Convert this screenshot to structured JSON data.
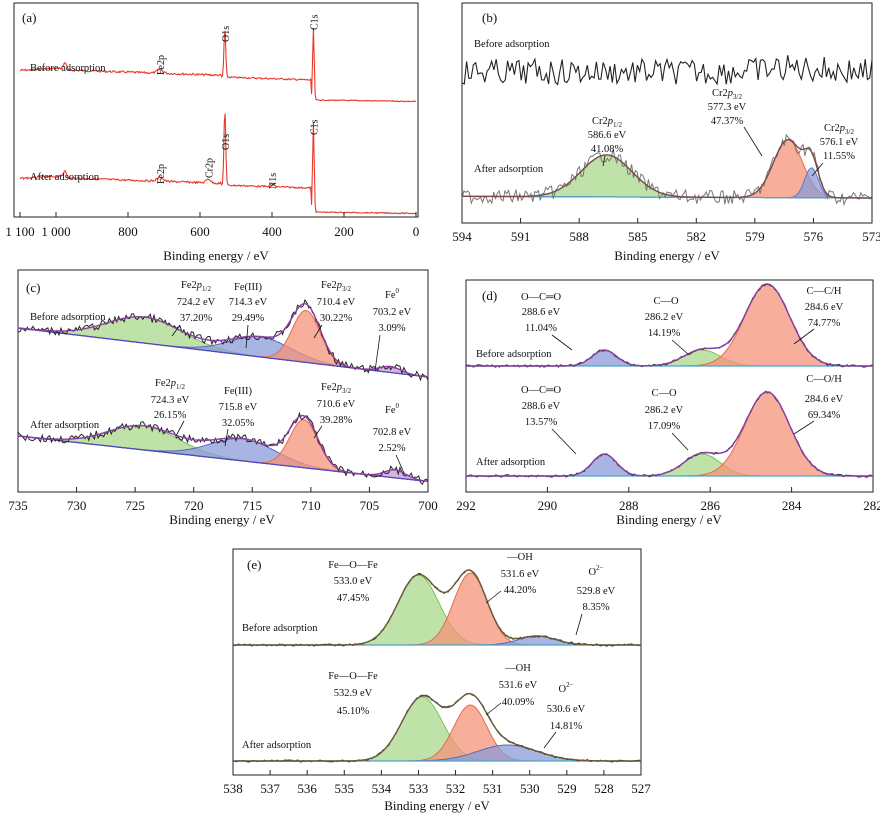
{
  "chart_data": [
    {
      "id": "a",
      "type": "line",
      "panel_label": "(a)",
      "xlabel": "Binding energy / eV",
      "xlim": [
        1100,
        0
      ],
      "xticks": [
        1100,
        1000,
        800,
        600,
        400,
        200,
        0
      ],
      "xtick_labels": [
        "1 100",
        "1 000",
        "800",
        "600",
        "400",
        "200",
        "0"
      ],
      "series_labels": [
        "Before adsorption",
        "After adsorption"
      ],
      "peak_labels": [
        {
          "series": 0,
          "x": 711,
          "text": "Fe2p"
        },
        {
          "series": 0,
          "x": 531,
          "text": "O1s"
        },
        {
          "series": 0,
          "x": 285,
          "text": "C1s"
        },
        {
          "series": 1,
          "x": 711,
          "text": "Fe2p"
        },
        {
          "series": 1,
          "x": 577,
          "text": "Cr2p"
        },
        {
          "series": 1,
          "x": 531,
          "text": "O1s"
        },
        {
          "series": 1,
          "x": 400,
          "text": "N1s"
        },
        {
          "series": 1,
          "x": 285,
          "text": "C1s"
        }
      ],
      "colors": {
        "data": "#e8392b",
        "peak": "#111111"
      }
    },
    {
      "id": "b",
      "type": "line",
      "panel_label": "(b)",
      "xlabel": "Binding energy / eV",
      "xlim": [
        594,
        573
      ],
      "xticks": [
        594,
        591,
        588,
        585,
        582,
        579,
        576,
        573
      ],
      "series_labels": [
        "Before adsorption",
        "After adsorption"
      ],
      "components": [
        {
          "name": "Cr2p1/2",
          "be": 586.6,
          "pct": 41.08,
          "be_label": "586.6 eV",
          "pct_label": "41.08%",
          "color": "#a8d88a"
        },
        {
          "name": "Cr2p3/2",
          "be": 577.3,
          "pct": 47.37,
          "be_label": "577.3 eV",
          "pct_label": "47.37%",
          "color": "#f4937a"
        },
        {
          "name": "Cr2p3/2",
          "be": 576.1,
          "pct": 11.55,
          "be_label": "576.1 eV",
          "pct_label": "11.55%",
          "color": "#8b9bd8"
        }
      ]
    },
    {
      "id": "c",
      "type": "line",
      "panel_label": "(c)",
      "xlabel": "Binding energy / eV",
      "xlim": [
        735,
        700
      ],
      "xticks": [
        735,
        730,
        725,
        720,
        715,
        710,
        705,
        700
      ],
      "series_labels": [
        "Before adsorption",
        "After adsorption"
      ],
      "components_before": [
        {
          "name": "Fe2p1/2",
          "be_label": "724.2 eV",
          "pct_label": "37.20%",
          "be": 724.2,
          "pct": 37.2,
          "color": "#a8d88a"
        },
        {
          "name": "Fe(III)",
          "be_label": "714.3 eV",
          "pct_label": "29.49%",
          "be": 714.3,
          "pct": 29.49,
          "color": "#8b9bd8"
        },
        {
          "name": "Fe2p3/2",
          "be_label": "710.4 eV",
          "pct_label": "30.22%",
          "be": 710.4,
          "pct": 30.22,
          "color": "#f4937a"
        },
        {
          "name": "Fe0",
          "be_label": "703.2 eV",
          "pct_label": "3.09%",
          "be": 703.2,
          "pct": 3.09,
          "color": "#c79bd6"
        }
      ],
      "components_after": [
        {
          "name": "Fe2p1/2",
          "be_label": "724.3 eV",
          "pct_label": "26.15%",
          "be": 724.3,
          "pct": 26.15,
          "color": "#a8d88a"
        },
        {
          "name": "Fe(III)",
          "be_label": "715.8 eV",
          "pct_label": "32.05%",
          "be": 715.8,
          "pct": 32.05,
          "color": "#8b9bd8"
        },
        {
          "name": "Fe2p3/2",
          "be_label": "710.6 eV",
          "pct_label": "39.28%",
          "be": 710.6,
          "pct": 39.28,
          "color": "#f4937a"
        },
        {
          "name": "Fe0",
          "be_label": "702.8 eV",
          "pct_label": "2.52%",
          "be": 702.8,
          "pct": 2.52,
          "color": "#c79bd6"
        }
      ]
    },
    {
      "id": "d",
      "type": "line",
      "panel_label": "(d)",
      "xlabel": "Binding energy / eV",
      "xlim": [
        292,
        282
      ],
      "xticks": [
        292,
        290,
        288,
        286,
        284,
        282
      ],
      "series_labels": [
        "Before adsorption",
        "After adsorption"
      ],
      "components_before": [
        {
          "name": "O—C═O",
          "be_label": "288.6 eV",
          "pct_label": "11.04%",
          "be": 288.6,
          "pct": 11.04,
          "color": "#8b9bd8"
        },
        {
          "name": "C—O",
          "be_label": "286.2 eV",
          "pct_label": "14.19%",
          "be": 286.2,
          "pct": 14.19,
          "color": "#a8d88a"
        },
        {
          "name": "C—C/H",
          "be_label": "284.6 eV",
          "pct_label": "74.77%",
          "be": 284.6,
          "pct": 74.77,
          "color": "#f4937a"
        }
      ],
      "components_after": [
        {
          "name": "O—C═O",
          "be_label": "288.6 eV",
          "pct_label": "13.57%",
          "be": 288.6,
          "pct": 13.57,
          "color": "#8b9bd8"
        },
        {
          "name": "C—O",
          "be_label": "286.2 eV",
          "pct_label": "17.09%",
          "be": 286.2,
          "pct": 17.09,
          "color": "#a8d88a"
        },
        {
          "name": "C—O/H",
          "be_label": "284.6 eV",
          "pct_label": "69.34%",
          "be": 284.6,
          "pct": 69.34,
          "color": "#f4937a"
        }
      ]
    },
    {
      "id": "e",
      "type": "line",
      "panel_label": "(e)",
      "xlabel": "Binding energy / eV",
      "xlim": [
        538,
        527
      ],
      "xticks": [
        538,
        537,
        536,
        535,
        534,
        533,
        532,
        531,
        530,
        529,
        528,
        527
      ],
      "series_labels": [
        "Before adsorption",
        "After adsorption"
      ],
      "components_before": [
        {
          "name": "Fe—O—Fe",
          "be_label": "533.0 eV",
          "pct_label": "47.45%",
          "be": 533.0,
          "pct": 47.45,
          "color": "#a8d88a"
        },
        {
          "name": "—OH",
          "be_label": "531.6 eV",
          "pct_label": "44.20%",
          "be": 531.6,
          "pct": 44.2,
          "color": "#f4937a"
        },
        {
          "name": "O2−",
          "be_label": "529.8 eV",
          "pct_label": "8.35%",
          "be": 529.8,
          "pct": 8.35,
          "color": "#8b9bd8"
        }
      ],
      "components_after": [
        {
          "name": "Fe—O—Fe",
          "be_label": "532.9 eV",
          "pct_label": "45.10%",
          "be": 532.9,
          "pct": 45.1,
          "color": "#a8d88a"
        },
        {
          "name": "—OH",
          "be_label": "531.6 eV",
          "pct_label": "40.09%",
          "be": 531.6,
          "pct": 40.09,
          "color": "#f4937a"
        },
        {
          "name": "O2−",
          "be_label": "530.6 eV",
          "pct_label": "14.81%",
          "be": 530.6,
          "pct": 14.81,
          "color": "#8b9bd8"
        }
      ]
    }
  ]
}
